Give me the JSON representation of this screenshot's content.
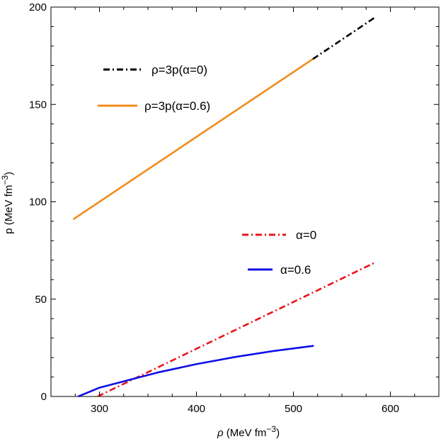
{
  "chart_data": {
    "type": "line",
    "xlabel_var": "ρ",
    "xlabel_unit": " (MeV fm",
    "ylabel": "p (MeV fm",
    "unit_exp": "−3",
    "unit_close": ")",
    "xlim": [
      250,
      650
    ],
    "ylim": [
      0,
      200
    ],
    "xticks": [
      300,
      400,
      500,
      600
    ],
    "yticks": [
      0,
      50,
      100,
      150,
      200
    ],
    "grid": false,
    "series": [
      {
        "name": "ρ=3p(α=0)",
        "color": "#000000",
        "style": "dashdot",
        "x": [
          520,
          585
        ],
        "y": [
          173.3,
          195
        ]
      },
      {
        "name": "ρ=3p(α=0.6)",
        "color": "#f28c1b",
        "style": "solid",
        "x": [
          273,
          520
        ],
        "y": [
          91,
          173.3
        ]
      },
      {
        "name": "α=0",
        "color": "#e8141b",
        "style": "dashdot",
        "x": [
          298,
          585
        ],
        "y": [
          0,
          69
        ]
      },
      {
        "name": "α=0.6",
        "color": "#1010e6",
        "style": "solid",
        "x": [
          278,
          300,
          330,
          360,
          400,
          440,
          480,
          521
        ],
        "y": [
          0,
          4.5,
          8.4,
          12.3,
          16.6,
          20.3,
          23.4,
          26
        ]
      }
    ]
  }
}
